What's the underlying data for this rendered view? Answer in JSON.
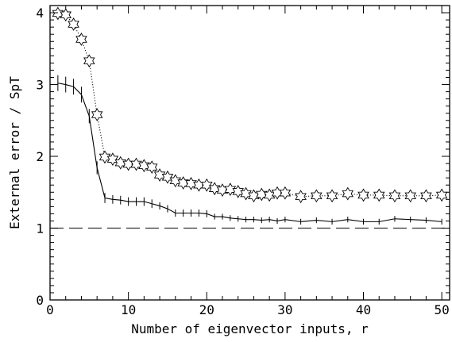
{
  "chart_data": {
    "type": "line",
    "xlabel": "Number of eigenvector inputs, r",
    "ylabel": "External error / SpT",
    "xlim": [
      0,
      51
    ],
    "ylim": [
      0,
      4.1
    ],
    "xticks": [
      0,
      10,
      20,
      30,
      40,
      50
    ],
    "yticks": [
      0,
      1,
      2,
      3,
      4
    ],
    "reference_line": {
      "y": 1.0,
      "style": "dashed"
    },
    "series": [
      {
        "marker": "star",
        "line": "dotted",
        "x": [
          1,
          2,
          3,
          4,
          5,
          6,
          7,
          8,
          9,
          10,
          11,
          12,
          13,
          14,
          15,
          16,
          17,
          18,
          19,
          20,
          21,
          22,
          23,
          24,
          25,
          26,
          27,
          28,
          29,
          30,
          32,
          34,
          36,
          38,
          40,
          42,
          44,
          46,
          48,
          50
        ],
        "y": [
          3.99,
          3.97,
          3.84,
          3.63,
          3.33,
          2.58,
          1.99,
          1.96,
          1.91,
          1.89,
          1.89,
          1.87,
          1.85,
          1.74,
          1.71,
          1.66,
          1.63,
          1.62,
          1.6,
          1.6,
          1.55,
          1.53,
          1.54,
          1.51,
          1.48,
          1.45,
          1.47,
          1.46,
          1.49,
          1.49,
          1.44,
          1.45,
          1.45,
          1.48,
          1.46,
          1.46,
          1.45,
          1.45,
          1.45,
          1.46
        ]
      },
      {
        "marker": "errorbar",
        "line": "solid",
        "x": [
          1,
          2,
          3,
          4,
          5,
          6,
          7,
          8,
          9,
          10,
          11,
          12,
          13,
          14,
          15,
          16,
          17,
          18,
          19,
          20,
          21,
          22,
          23,
          24,
          25,
          26,
          27,
          28,
          29,
          30,
          32,
          34,
          36,
          38,
          40,
          42,
          44,
          46,
          48,
          50
        ],
        "y": [
          3.02,
          3.0,
          2.97,
          2.86,
          2.56,
          1.84,
          1.42,
          1.4,
          1.39,
          1.37,
          1.37,
          1.37,
          1.34,
          1.31,
          1.27,
          1.21,
          1.21,
          1.21,
          1.21,
          1.2,
          1.16,
          1.16,
          1.14,
          1.13,
          1.12,
          1.12,
          1.11,
          1.12,
          1.1,
          1.12,
          1.09,
          1.11,
          1.09,
          1.12,
          1.09,
          1.09,
          1.13,
          1.12,
          1.11,
          1.09
        ],
        "err": [
          0.11,
          0.11,
          0.11,
          0.11,
          0.1,
          0.09,
          0.07,
          0.06,
          0.06,
          0.06,
          0.06,
          0.06,
          0.06,
          0.05,
          0.05,
          0.05,
          0.05,
          0.05,
          0.05,
          0.05,
          0.04,
          0.04,
          0.04,
          0.04,
          0.04,
          0.04,
          0.04,
          0.04,
          0.04,
          0.04,
          0.04,
          0.04,
          0.04,
          0.04,
          0.04,
          0.04,
          0.04,
          0.04,
          0.04,
          0.04
        ]
      }
    ]
  }
}
